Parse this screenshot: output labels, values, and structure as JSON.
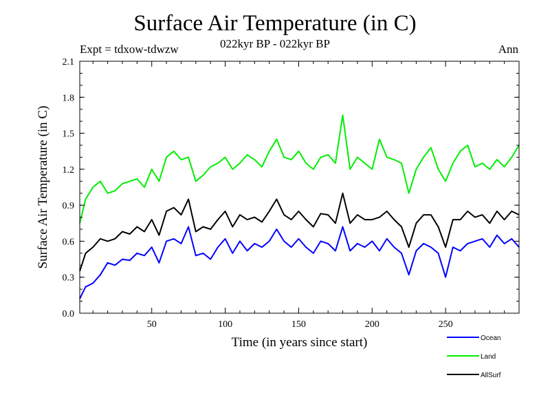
{
  "chart_data": {
    "type": "line",
    "title": "Surface Air Temperature (in C)",
    "subtitle": "022kyr BP - 022kyr BP",
    "experiment": "Expt = tdxow-tdwzw",
    "season": "Ann",
    "xlabel": "Time (in years since start)",
    "ylabel": "Surface Air Temperature (in C)",
    "xlim": [
      1,
      300
    ],
    "ylim": [
      0.0,
      2.1
    ],
    "xticks": [
      50,
      100,
      150,
      200,
      250
    ],
    "yticks": [
      0.0,
      0.3,
      0.6,
      0.9,
      1.2,
      1.5,
      1.8,
      2.1
    ],
    "ytick_labels": [
      "0.0",
      "0.3",
      "0.6",
      "0.9",
      "1.2",
      "1.5",
      "1.8",
      "2.1"
    ],
    "legend_position": "bottom-right, below plot",
    "series": [
      {
        "name": "Ocean",
        "color": "#0000ff",
        "x": [
          1,
          5,
          10,
          15,
          20,
          25,
          30,
          35,
          40,
          45,
          50,
          55,
          60,
          65,
          70,
          75,
          80,
          85,
          90,
          95,
          100,
          105,
          110,
          115,
          120,
          125,
          130,
          135,
          140,
          145,
          150,
          155,
          160,
          165,
          170,
          175,
          180,
          185,
          190,
          195,
          200,
          205,
          210,
          215,
          220,
          225,
          230,
          235,
          240,
          245,
          250,
          255,
          260,
          265,
          270,
          275,
          280,
          285,
          290,
          295,
          300
        ],
        "values": [
          0.12,
          0.22,
          0.25,
          0.32,
          0.42,
          0.4,
          0.45,
          0.44,
          0.5,
          0.48,
          0.55,
          0.42,
          0.6,
          0.62,
          0.58,
          0.72,
          0.48,
          0.5,
          0.45,
          0.55,
          0.62,
          0.5,
          0.6,
          0.52,
          0.58,
          0.55,
          0.6,
          0.7,
          0.6,
          0.55,
          0.62,
          0.55,
          0.5,
          0.6,
          0.58,
          0.52,
          0.72,
          0.52,
          0.58,
          0.55,
          0.6,
          0.52,
          0.62,
          0.55,
          0.5,
          0.32,
          0.52,
          0.58,
          0.55,
          0.5,
          0.3,
          0.55,
          0.52,
          0.58,
          0.6,
          0.62,
          0.55,
          0.65,
          0.58,
          0.62,
          0.55
        ]
      },
      {
        "name": "Land",
        "color": "#00ee00",
        "x": [
          1,
          5,
          10,
          15,
          20,
          25,
          30,
          35,
          40,
          45,
          50,
          55,
          60,
          65,
          70,
          75,
          80,
          85,
          90,
          95,
          100,
          105,
          110,
          115,
          120,
          125,
          130,
          135,
          140,
          145,
          150,
          155,
          160,
          165,
          170,
          175,
          180,
          185,
          190,
          195,
          200,
          205,
          210,
          215,
          220,
          225,
          230,
          235,
          240,
          245,
          250,
          255,
          260,
          265,
          270,
          275,
          280,
          285,
          290,
          295,
          300
        ],
        "values": [
          0.75,
          0.95,
          1.05,
          1.1,
          1.0,
          1.02,
          1.08,
          1.1,
          1.12,
          1.05,
          1.2,
          1.1,
          1.3,
          1.35,
          1.28,
          1.3,
          1.1,
          1.15,
          1.22,
          1.25,
          1.3,
          1.2,
          1.25,
          1.32,
          1.28,
          1.22,
          1.35,
          1.45,
          1.3,
          1.28,
          1.35,
          1.25,
          1.2,
          1.3,
          1.32,
          1.25,
          1.65,
          1.2,
          1.3,
          1.25,
          1.2,
          1.45,
          1.3,
          1.28,
          1.25,
          1.0,
          1.2,
          1.3,
          1.38,
          1.2,
          1.1,
          1.25,
          1.35,
          1.4,
          1.22,
          1.25,
          1.2,
          1.28,
          1.22,
          1.3,
          1.4
        ]
      },
      {
        "name": "AllSurf",
        "color": "#000000",
        "x": [
          1,
          5,
          10,
          15,
          20,
          25,
          30,
          35,
          40,
          45,
          50,
          55,
          60,
          65,
          70,
          75,
          80,
          85,
          90,
          95,
          100,
          105,
          110,
          115,
          120,
          125,
          130,
          135,
          140,
          145,
          150,
          155,
          160,
          165,
          170,
          175,
          180,
          185,
          190,
          195,
          200,
          205,
          210,
          215,
          220,
          225,
          230,
          235,
          240,
          245,
          250,
          255,
          260,
          265,
          270,
          275,
          280,
          285,
          290,
          295,
          300
        ],
        "values": [
          0.35,
          0.5,
          0.55,
          0.62,
          0.6,
          0.62,
          0.68,
          0.66,
          0.72,
          0.68,
          0.78,
          0.65,
          0.85,
          0.88,
          0.82,
          0.95,
          0.68,
          0.72,
          0.7,
          0.78,
          0.85,
          0.72,
          0.82,
          0.78,
          0.8,
          0.76,
          0.85,
          0.95,
          0.82,
          0.78,
          0.85,
          0.78,
          0.72,
          0.83,
          0.82,
          0.75,
          1.0,
          0.75,
          0.82,
          0.78,
          0.78,
          0.8,
          0.85,
          0.78,
          0.72,
          0.55,
          0.75,
          0.82,
          0.82,
          0.72,
          0.55,
          0.78,
          0.78,
          0.85,
          0.8,
          0.82,
          0.75,
          0.85,
          0.78,
          0.85,
          0.82
        ]
      }
    ]
  }
}
